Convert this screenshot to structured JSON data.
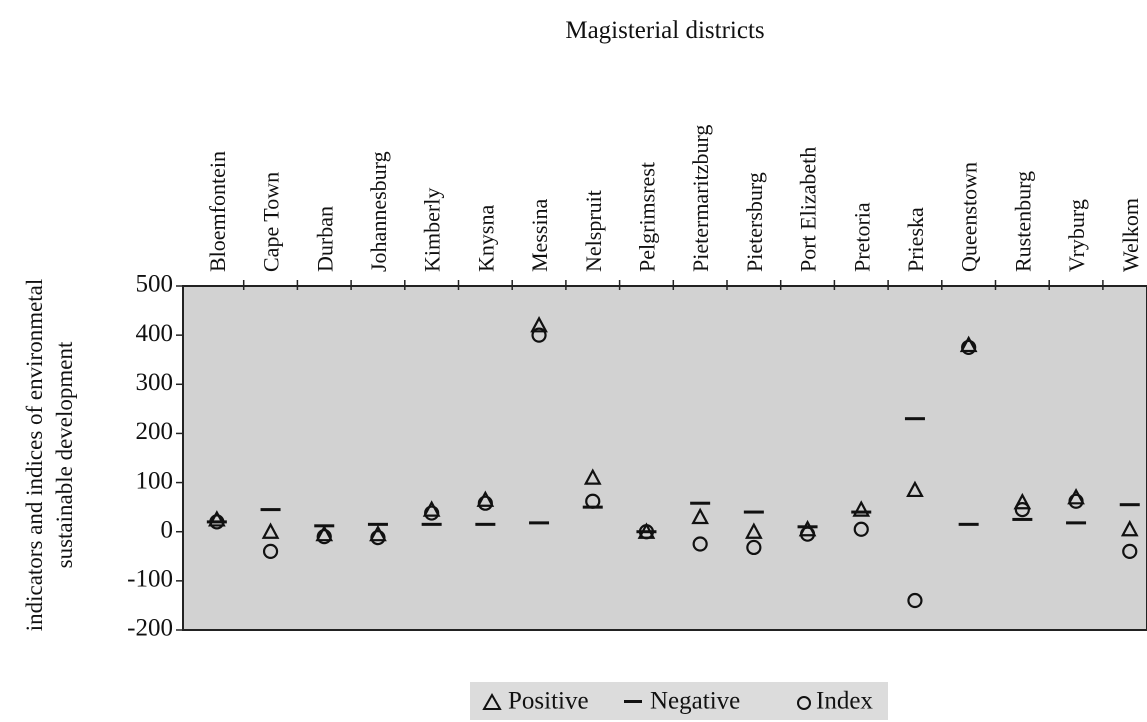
{
  "chart_data": {
    "type": "scatter",
    "title": "Magisterial districts",
    "ylabel": [
      "indicators and indices of environmetal",
      "sustainable development"
    ],
    "categories": [
      "Bloemfontein",
      "Cape Town",
      "Durban",
      "Johannesburg",
      "Kimberly",
      "Knysna",
      "Messina",
      "Nelspruit",
      "Pelgrimsrest",
      "Pietermaritzburg",
      "Pietersburg",
      "Port Elizabeth",
      "Pretoria",
      "Prieska",
      "Queenstown",
      "Rustenburg",
      "Vryburg",
      "Welkom"
    ],
    "series": [
      {
        "name": "Positive",
        "marker": "triangle",
        "color": "#111111",
        "values": [
          25,
          0,
          -5,
          -5,
          45,
          65,
          420,
          110,
          0,
          30,
          0,
          5,
          45,
          85,
          380,
          60,
          70,
          5
        ]
      },
      {
        "name": "Negative",
        "marker": "dash",
        "color": "#111111",
        "values": [
          20,
          45,
          12,
          15,
          15,
          15,
          18,
          50,
          0,
          58,
          40,
          10,
          40,
          230,
          15,
          25,
          18,
          55
        ]
      },
      {
        "name": "Index",
        "marker": "circle",
        "color": "#111111",
        "values": [
          20,
          -40,
          -10,
          -12,
          38,
          58,
          400,
          62,
          0,
          -25,
          -32,
          -5,
          5,
          -140,
          375,
          45,
          62,
          -40
        ]
      }
    ],
    "ylim": [
      -200,
      500
    ],
    "yticks": [
      -200,
      -100,
      0,
      100,
      200,
      300,
      400,
      500
    ],
    "background": "#d2d2d2"
  }
}
